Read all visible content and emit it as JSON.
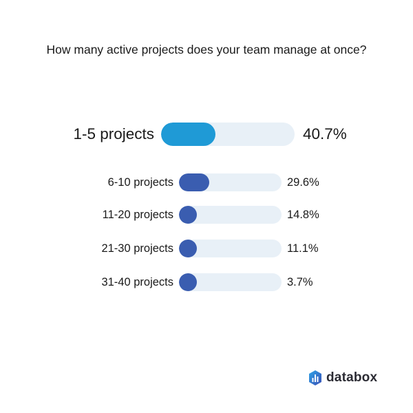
{
  "title": "How many active projects does your team manage at once?",
  "colors": {
    "track": "#e8f0f7",
    "highlight_fill": "#1f9ad6",
    "fill": "#3a5db0",
    "text": "#1a1a1a"
  },
  "brand": {
    "name": "databox",
    "icon": "databox-logo-icon"
  },
  "chart_data": {
    "type": "bar",
    "orientation": "horizontal",
    "title": "How many active projects does your team manage at once?",
    "categories": [
      "1-5 projects",
      "6-10 projects",
      "11-20 projects",
      "21-30 projects",
      "31-40 projects"
    ],
    "values": [
      40.7,
      29.6,
      14.8,
      11.1,
      3.7
    ],
    "value_labels": [
      "40.7%",
      "29.6%",
      "14.8%",
      "11.1%",
      "3.7%"
    ],
    "unit": "%",
    "xlabel": "",
    "ylabel": "",
    "highlighted": "1-5 projects",
    "grid": false,
    "legend": false
  },
  "rows": [
    {
      "label": "1-5 projects",
      "value": "40.7%",
      "pct": 40.7
    },
    {
      "label": "6-10 projects",
      "value": "29.6%",
      "pct": 29.6
    },
    {
      "label": "11-20 projects",
      "value": "14.8%",
      "pct": 14.8
    },
    {
      "label": "21-30 projects",
      "value": "11.1%",
      "pct": 11.1
    },
    {
      "label": "31-40 projects",
      "value": "3.7%",
      "pct": 3.7
    }
  ]
}
